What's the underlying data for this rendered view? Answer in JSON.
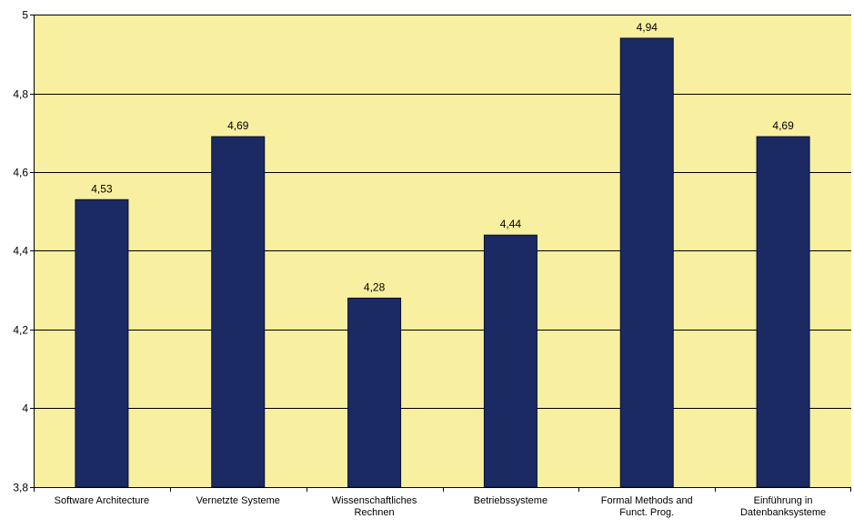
{
  "chart_data": {
    "type": "bar",
    "categories": [
      [
        "Software Architecture"
      ],
      [
        "Vernetzte Systeme"
      ],
      [
        "Wissenschaftliches",
        "Rechnen"
      ],
      [
        "Betriebssysteme"
      ],
      [
        "Formal Methods and",
        "Funct. Prog."
      ],
      [
        "Einführung in",
        "Datenbanksysteme"
      ]
    ],
    "values": [
      4.53,
      4.69,
      4.28,
      4.44,
      4.94,
      4.69
    ],
    "data_labels": [
      "4,53",
      "4,69",
      "4,28",
      "4,44",
      "4,94",
      "4,69"
    ],
    "ylim": [
      3.8,
      5
    ],
    "yticks": [
      3.8,
      4,
      4.2,
      4.4,
      4.6,
      4.8,
      5
    ],
    "ytick_labels": [
      "3,8",
      "4",
      "4,2",
      "4,4",
      "4,6",
      "4,8",
      "5"
    ],
    "grid": true,
    "legend": "none",
    "colors": {
      "plot_background": "#F9EFA0",
      "bar_fill": "#1B2A63",
      "bar_stroke": "#0A0F30",
      "gridline": "#000000"
    }
  }
}
